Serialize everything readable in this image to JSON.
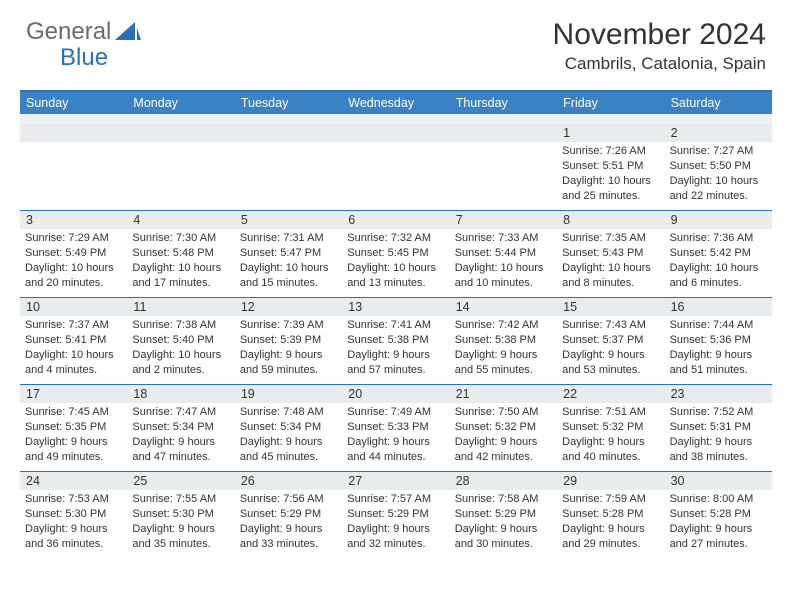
{
  "logo": {
    "part1": "General",
    "part2": "Blue"
  },
  "title": "November 2024",
  "location": "Cambrils, Catalonia, Spain",
  "colors": {
    "header_bar": "#3b82c4",
    "rule": "#2a72b5",
    "daynum_bg": "#e9ebec",
    "text": "#333333",
    "logo_gray": "#6b6b6b",
    "logo_blue": "#2a72b5"
  },
  "weekdays": [
    "Sunday",
    "Monday",
    "Tuesday",
    "Wednesday",
    "Thursday",
    "Friday",
    "Saturday"
  ],
  "weeks": [
    [
      {
        "n": "",
        "sr": "",
        "ss": "",
        "dl": ""
      },
      {
        "n": "",
        "sr": "",
        "ss": "",
        "dl": ""
      },
      {
        "n": "",
        "sr": "",
        "ss": "",
        "dl": ""
      },
      {
        "n": "",
        "sr": "",
        "ss": "",
        "dl": ""
      },
      {
        "n": "",
        "sr": "",
        "ss": "",
        "dl": ""
      },
      {
        "n": "1",
        "sr": "Sunrise: 7:26 AM",
        "ss": "Sunset: 5:51 PM",
        "dl": "Daylight: 10 hours and 25 minutes."
      },
      {
        "n": "2",
        "sr": "Sunrise: 7:27 AM",
        "ss": "Sunset: 5:50 PM",
        "dl": "Daylight: 10 hours and 22 minutes."
      }
    ],
    [
      {
        "n": "3",
        "sr": "Sunrise: 7:29 AM",
        "ss": "Sunset: 5:49 PM",
        "dl": "Daylight: 10 hours and 20 minutes."
      },
      {
        "n": "4",
        "sr": "Sunrise: 7:30 AM",
        "ss": "Sunset: 5:48 PM",
        "dl": "Daylight: 10 hours and 17 minutes."
      },
      {
        "n": "5",
        "sr": "Sunrise: 7:31 AM",
        "ss": "Sunset: 5:47 PM",
        "dl": "Daylight: 10 hours and 15 minutes."
      },
      {
        "n": "6",
        "sr": "Sunrise: 7:32 AM",
        "ss": "Sunset: 5:45 PM",
        "dl": "Daylight: 10 hours and 13 minutes."
      },
      {
        "n": "7",
        "sr": "Sunrise: 7:33 AM",
        "ss": "Sunset: 5:44 PM",
        "dl": "Daylight: 10 hours and 10 minutes."
      },
      {
        "n": "8",
        "sr": "Sunrise: 7:35 AM",
        "ss": "Sunset: 5:43 PM",
        "dl": "Daylight: 10 hours and 8 minutes."
      },
      {
        "n": "9",
        "sr": "Sunrise: 7:36 AM",
        "ss": "Sunset: 5:42 PM",
        "dl": "Daylight: 10 hours and 6 minutes."
      }
    ],
    [
      {
        "n": "10",
        "sr": "Sunrise: 7:37 AM",
        "ss": "Sunset: 5:41 PM",
        "dl": "Daylight: 10 hours and 4 minutes."
      },
      {
        "n": "11",
        "sr": "Sunrise: 7:38 AM",
        "ss": "Sunset: 5:40 PM",
        "dl": "Daylight: 10 hours and 2 minutes."
      },
      {
        "n": "12",
        "sr": "Sunrise: 7:39 AM",
        "ss": "Sunset: 5:39 PM",
        "dl": "Daylight: 9 hours and 59 minutes."
      },
      {
        "n": "13",
        "sr": "Sunrise: 7:41 AM",
        "ss": "Sunset: 5:38 PM",
        "dl": "Daylight: 9 hours and 57 minutes."
      },
      {
        "n": "14",
        "sr": "Sunrise: 7:42 AM",
        "ss": "Sunset: 5:38 PM",
        "dl": "Daylight: 9 hours and 55 minutes."
      },
      {
        "n": "15",
        "sr": "Sunrise: 7:43 AM",
        "ss": "Sunset: 5:37 PM",
        "dl": "Daylight: 9 hours and 53 minutes."
      },
      {
        "n": "16",
        "sr": "Sunrise: 7:44 AM",
        "ss": "Sunset: 5:36 PM",
        "dl": "Daylight: 9 hours and 51 minutes."
      }
    ],
    [
      {
        "n": "17",
        "sr": "Sunrise: 7:45 AM",
        "ss": "Sunset: 5:35 PM",
        "dl": "Daylight: 9 hours and 49 minutes."
      },
      {
        "n": "18",
        "sr": "Sunrise: 7:47 AM",
        "ss": "Sunset: 5:34 PM",
        "dl": "Daylight: 9 hours and 47 minutes."
      },
      {
        "n": "19",
        "sr": "Sunrise: 7:48 AM",
        "ss": "Sunset: 5:34 PM",
        "dl": "Daylight: 9 hours and 45 minutes."
      },
      {
        "n": "20",
        "sr": "Sunrise: 7:49 AM",
        "ss": "Sunset: 5:33 PM",
        "dl": "Daylight: 9 hours and 44 minutes."
      },
      {
        "n": "21",
        "sr": "Sunrise: 7:50 AM",
        "ss": "Sunset: 5:32 PM",
        "dl": "Daylight: 9 hours and 42 minutes."
      },
      {
        "n": "22",
        "sr": "Sunrise: 7:51 AM",
        "ss": "Sunset: 5:32 PM",
        "dl": "Daylight: 9 hours and 40 minutes."
      },
      {
        "n": "23",
        "sr": "Sunrise: 7:52 AM",
        "ss": "Sunset: 5:31 PM",
        "dl": "Daylight: 9 hours and 38 minutes."
      }
    ],
    [
      {
        "n": "24",
        "sr": "Sunrise: 7:53 AM",
        "ss": "Sunset: 5:30 PM",
        "dl": "Daylight: 9 hours and 36 minutes."
      },
      {
        "n": "25",
        "sr": "Sunrise: 7:55 AM",
        "ss": "Sunset: 5:30 PM",
        "dl": "Daylight: 9 hours and 35 minutes."
      },
      {
        "n": "26",
        "sr": "Sunrise: 7:56 AM",
        "ss": "Sunset: 5:29 PM",
        "dl": "Daylight: 9 hours and 33 minutes."
      },
      {
        "n": "27",
        "sr": "Sunrise: 7:57 AM",
        "ss": "Sunset: 5:29 PM",
        "dl": "Daylight: 9 hours and 32 minutes."
      },
      {
        "n": "28",
        "sr": "Sunrise: 7:58 AM",
        "ss": "Sunset: 5:29 PM",
        "dl": "Daylight: 9 hours and 30 minutes."
      },
      {
        "n": "29",
        "sr": "Sunrise: 7:59 AM",
        "ss": "Sunset: 5:28 PM",
        "dl": "Daylight: 9 hours and 29 minutes."
      },
      {
        "n": "30",
        "sr": "Sunrise: 8:00 AM",
        "ss": "Sunset: 5:28 PM",
        "dl": "Daylight: 9 hours and 27 minutes."
      }
    ]
  ]
}
